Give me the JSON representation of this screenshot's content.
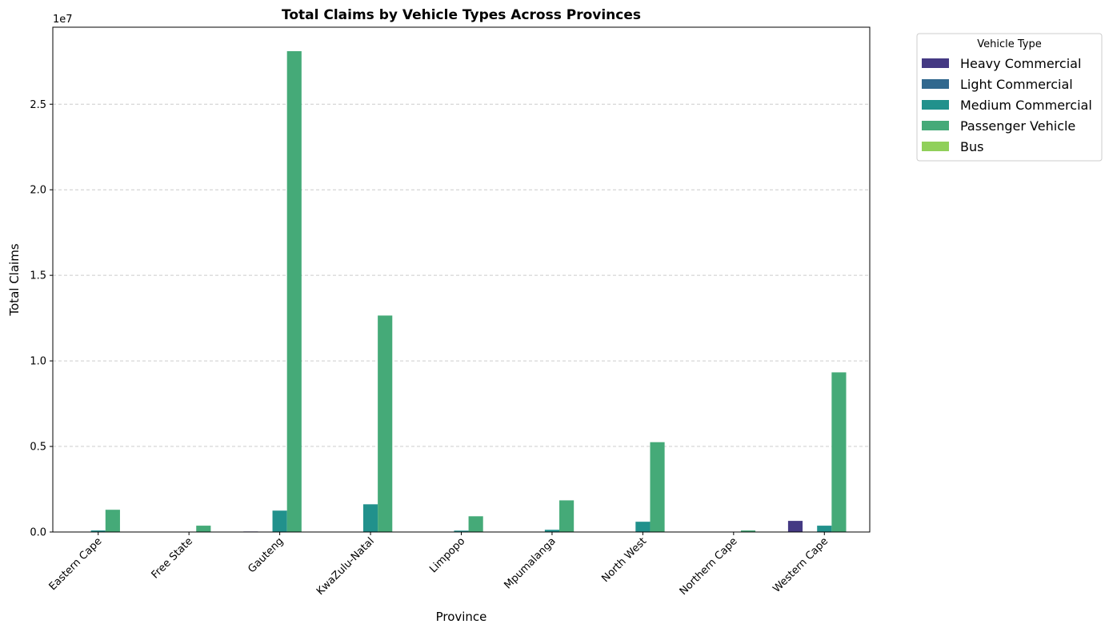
{
  "chart_data": {
    "type": "bar",
    "title": "Total Claims by Vehicle Types Across Provinces",
    "xlabel": "Province",
    "ylabel": "Total Claims",
    "y_offset_label": "1e7",
    "ylim": [
      0,
      29500000
    ],
    "y_ticks": [
      0,
      5000000,
      10000000,
      15000000,
      20000000,
      25000000
    ],
    "y_tick_labels": [
      "0.0",
      "0.5",
      "1.0",
      "1.5",
      "2.0",
      "2.5"
    ],
    "grid": "y-dashed",
    "categories": [
      "Eastern Cape",
      "Free State",
      "Gauteng",
      "KwaZulu-Natal",
      "Limpopo",
      "Mpumalanga",
      "North West",
      "Northern Cape",
      "Western Cape"
    ],
    "legend": {
      "title": "Vehicle Type",
      "placement": "outside-upper-right"
    },
    "series": [
      {
        "name": "Heavy Commercial",
        "color": "#443983",
        "values": [
          0,
          0,
          30000,
          0,
          0,
          20000,
          20000,
          0,
          650000
        ]
      },
      {
        "name": "Light Commercial",
        "color": "#31688e",
        "values": [
          0,
          0,
          0,
          0,
          0,
          0,
          0,
          0,
          0
        ]
      },
      {
        "name": "Medium Commercial",
        "color": "#21918c",
        "values": [
          90000,
          0,
          1250000,
          1620000,
          80000,
          130000,
          600000,
          0,
          370000
        ]
      },
      {
        "name": "Passenger Vehicle",
        "color": "#45aa78",
        "values": [
          1300000,
          370000,
          28100000,
          12650000,
          920000,
          1850000,
          5250000,
          90000,
          9330000
        ]
      },
      {
        "name": "Bus",
        "color": "#90d05a",
        "values": [
          0,
          0,
          0,
          0,
          0,
          0,
          0,
          0,
          0
        ]
      }
    ]
  }
}
